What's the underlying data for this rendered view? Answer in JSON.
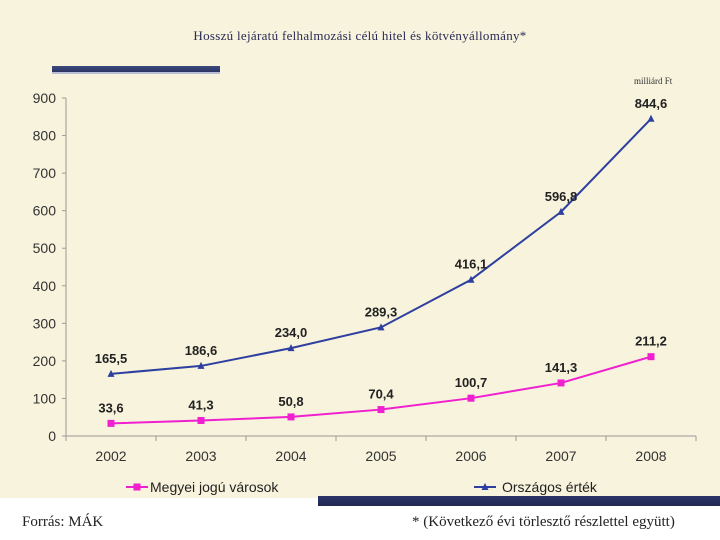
{
  "slide": {
    "title": "Hosszú lejáratú felhalmozási célú hitel és kötvényállomány*",
    "unit_label": "milliárd Ft",
    "footer_source": "Forrás: MÁK",
    "footer_note": "* (Következő évi törlesztő részlettel együtt)"
  },
  "colors": {
    "blue_series": "#2e3fa0",
    "pink_series": "#f01fd0",
    "axis_text": "#333333"
  },
  "chart_data": {
    "type": "line",
    "title": "Hosszú lejáratú felhalmozási célú hitel és kötvényállomány*",
    "xlabel": "",
    "ylabel": "milliárd Ft",
    "categories": [
      "2002",
      "2003",
      "2004",
      "2005",
      "2006",
      "2007",
      "2008"
    ],
    "ylim": [
      0,
      900
    ],
    "yticks": [
      "0",
      "100",
      "200",
      "300",
      "400",
      "500",
      "600",
      "700",
      "800",
      "900"
    ],
    "legend_position": "bottom",
    "series": [
      {
        "name": "Megyei jogú városok",
        "marker": "square",
        "values": [
          33.6,
          41.3,
          50.8,
          70.4,
          100.7,
          141.3,
          211.2
        ],
        "labels": [
          "33,6",
          "41,3",
          "50,8",
          "70,4",
          "100,7",
          "141,3",
          "211,2"
        ]
      },
      {
        "name": "Országos érték",
        "marker": "triangle",
        "values": [
          165.5,
          186.6,
          234.0,
          289.3,
          416.1,
          596.8,
          844.6
        ],
        "labels": [
          "165,5",
          "186,6",
          "234,0",
          "289,3",
          "416,1",
          "596,8",
          "844,6"
        ]
      }
    ]
  }
}
